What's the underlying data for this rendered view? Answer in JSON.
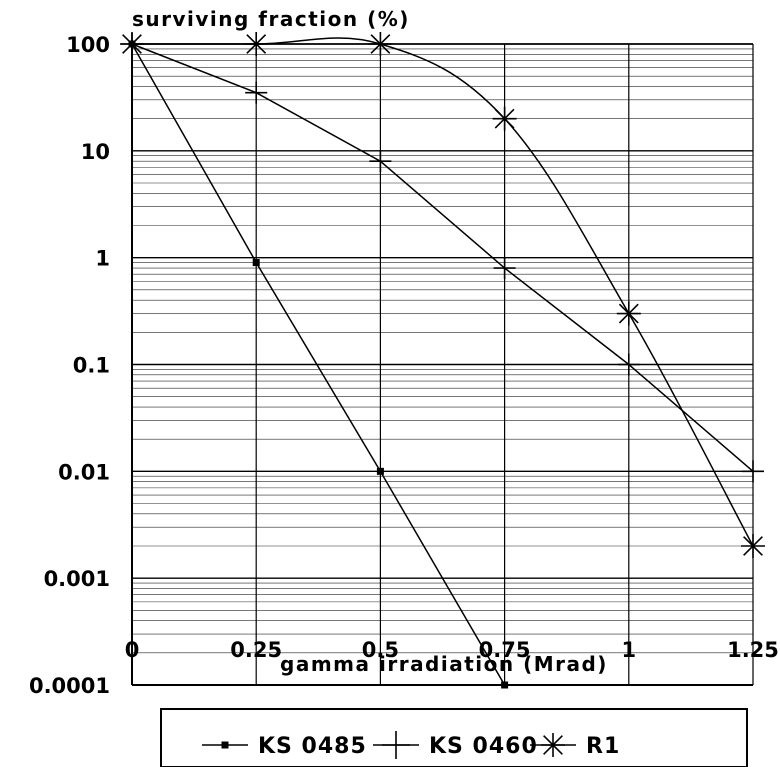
{
  "chart_data": {
    "type": "line",
    "title": "",
    "ylabel": "surviving fraction (%)",
    "xlabel": "gamma irradiation (Mrad)",
    "y_scale": "log",
    "ylim": [
      0.0001,
      100
    ],
    "xlim": [
      0,
      1.25
    ],
    "grid": true,
    "legend_position": "bottom",
    "x_ticks": [
      0,
      0.25,
      0.5,
      0.75,
      1,
      1.25
    ],
    "x_tick_labels": [
      "0",
      "0.25",
      "0.5",
      "0.75",
      "1",
      "1.25"
    ],
    "y_ticks": [
      0.0001,
      0.001,
      0.01,
      0.1,
      1,
      10,
      100
    ],
    "y_tick_labels": [
      "0.0001",
      "0.001",
      "0.01",
      "0.1",
      "1",
      "10",
      "100"
    ],
    "series": [
      {
        "name": "KS 0485",
        "marker": "square",
        "x": [
          0,
          0.25,
          0.5,
          0.75
        ],
        "y": [
          100,
          0.9,
          0.01,
          0.0001
        ]
      },
      {
        "name": "KS 0460",
        "marker": "plus",
        "x": [
          0,
          0.25,
          0.5,
          0.75,
          1,
          1.25
        ],
        "y": [
          100,
          35,
          8,
          0.8,
          0.1,
          0.01
        ]
      },
      {
        "name": "R1",
        "marker": "asterisk",
        "x": [
          0,
          0.25,
          0.5,
          0.75,
          1,
          1.25
        ],
        "y": [
          100,
          100,
          100,
          20,
          0.3,
          0.002
        ]
      }
    ]
  },
  "colors": {
    "line": "#000000",
    "grid": "#000000",
    "background": "#ffffff"
  }
}
